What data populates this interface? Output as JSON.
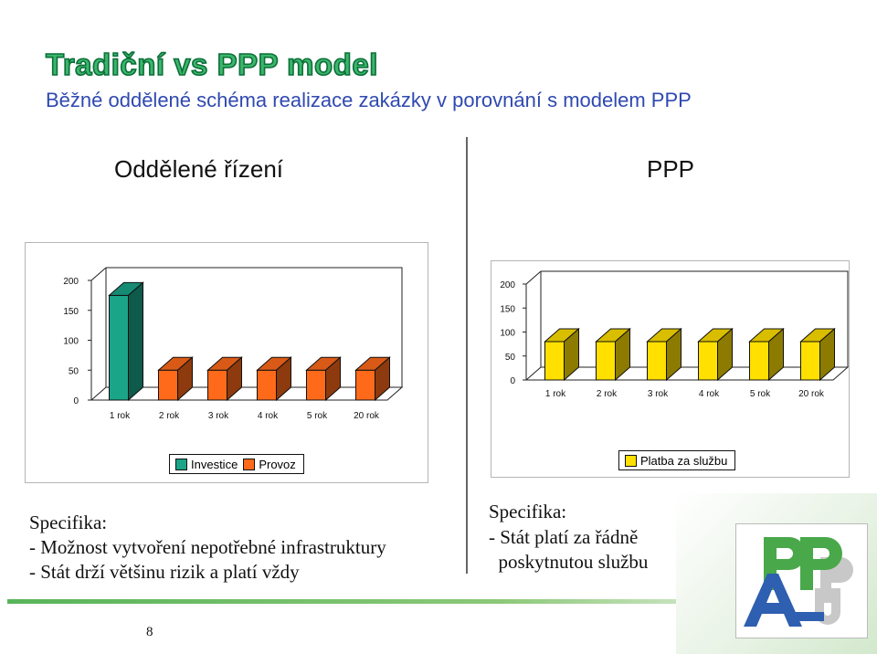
{
  "slide": {
    "title": "Tradiční vs PPP model",
    "subtitle": "Běžné oddělené schéma realizace zakázky v porovnání s modelem PPP",
    "page_number": "8"
  },
  "left": {
    "heading": "Oddělené řízení",
    "spec_heading": "Specifika:",
    "spec_lines": [
      "- Možnost vytvoření nepotřebné infrastruktury",
      "- Stát drží většinu rizik a platí vždy"
    ]
  },
  "right": {
    "heading": "PPP",
    "spec_heading": "Specifika:",
    "spec_lines": [
      "- Stát platí za řádně",
      "  poskytnutou službu"
    ]
  },
  "legends": {
    "left": [
      {
        "label": "Investice",
        "color": "#1aa488"
      },
      {
        "label": "Provoz",
        "color": "#ff6a1a"
      }
    ],
    "right": [
      {
        "label": "Platba za službu",
        "color": "#ffe000"
      }
    ]
  },
  "logo": {
    "text": "PPP",
    "icon": "ppp-association-logo"
  },
  "chart_data": [
    {
      "type": "bar",
      "categories": [
        "1 rok",
        "2 rok",
        "3 rok",
        "4 rok",
        "5 rok",
        "20 rok"
      ],
      "series": [
        {
          "name": "Investice",
          "color": "#1aa488",
          "values": [
            175,
            0,
            0,
            0,
            0,
            0
          ]
        },
        {
          "name": "Provoz",
          "color": "#ff6a1a",
          "values": [
            0,
            50,
            50,
            50,
            50,
            50
          ]
        }
      ],
      "yticks": [
        0,
        50,
        100,
        150,
        200
      ],
      "ylim": [
        0,
        200
      ],
      "grid": false,
      "legend": "bottom"
    },
    {
      "type": "bar",
      "categories": [
        "1 rok",
        "2 rok",
        "3 rok",
        "4 rok",
        "5 rok",
        "20 rok"
      ],
      "series": [
        {
          "name": "Platba za službu",
          "color": "#ffe000",
          "values": [
            80,
            80,
            80,
            80,
            80,
            80
          ]
        }
      ],
      "yticks": [
        0,
        50,
        100,
        150,
        200
      ],
      "ylim": [
        0,
        200
      ],
      "grid": false,
      "legend": "bottom"
    }
  ]
}
